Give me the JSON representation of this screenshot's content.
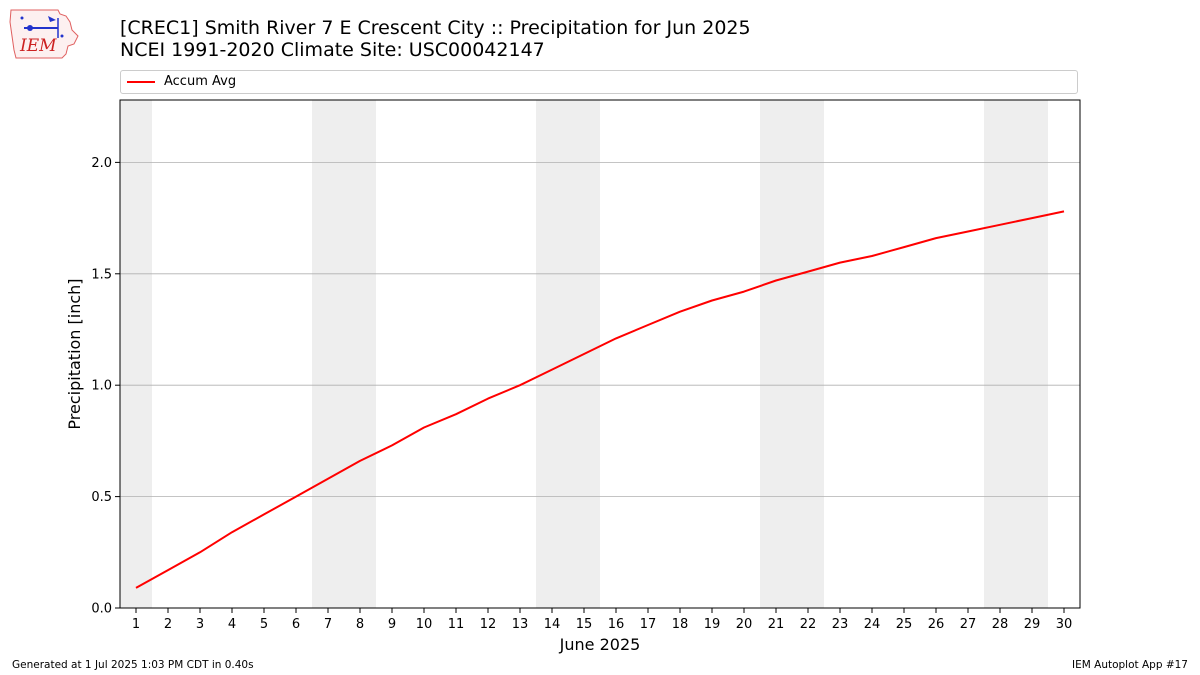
{
  "header": {
    "title_line1": "[CREC1] Smith River 7 E Crescent City :: Precipitation for Jun 2025",
    "title_line2": "NCEI 1991-2020 Climate Site: USC00042147"
  },
  "logo": {
    "text": "IEM",
    "icon": "iem-logo-icon"
  },
  "footer": {
    "generated": "Generated at 1 Jul 2025 1:03 PM CDT in 0.40s",
    "app": "IEM Autoplot App #17"
  },
  "colors": {
    "series": "#ff0000",
    "weekend_band": "#eeeeee",
    "grid": "#b0b0b0"
  },
  "chart_data": {
    "type": "line",
    "title": "[CREC1] Smith River 7 E Crescent City :: Precipitation for Jun 2025",
    "subtitle": "NCEI 1991-2020 Climate Site: USC00042147",
    "xlabel": "June 2025",
    "ylabel": "Precipitation [inch]",
    "xlim": [
      0.5,
      30.5
    ],
    "ylim": [
      0,
      2.28
    ],
    "x_ticks": [
      1,
      2,
      3,
      4,
      5,
      6,
      7,
      8,
      9,
      10,
      11,
      12,
      13,
      14,
      15,
      16,
      17,
      18,
      19,
      20,
      21,
      22,
      23,
      24,
      25,
      26,
      27,
      28,
      29,
      30
    ],
    "y_ticks": [
      "0.0",
      "0.5",
      "1.0",
      "1.5",
      "2.0"
    ],
    "y_tick_values": [
      0,
      0.5,
      1.0,
      1.5,
      2.0
    ],
    "grid": "horizontal",
    "legend": "top",
    "weekend_days": [
      1,
      7,
      8,
      14,
      15,
      21,
      22,
      28,
      29
    ],
    "x": [
      1,
      2,
      3,
      4,
      5,
      6,
      7,
      8,
      9,
      10,
      11,
      12,
      13,
      14,
      15,
      16,
      17,
      18,
      19,
      20,
      21,
      22,
      23,
      24,
      25,
      26,
      27,
      28,
      29,
      30
    ],
    "series": [
      {
        "name": "Accum Avg",
        "values": [
          0.09,
          0.17,
          0.25,
          0.34,
          0.42,
          0.5,
          0.58,
          0.66,
          0.73,
          0.81,
          0.87,
          0.94,
          1.0,
          1.07,
          1.14,
          1.21,
          1.27,
          1.33,
          1.38,
          1.42,
          1.47,
          1.51,
          1.55,
          1.58,
          1.62,
          1.66,
          1.69,
          1.72,
          1.75,
          1.78
        ]
      }
    ]
  }
}
